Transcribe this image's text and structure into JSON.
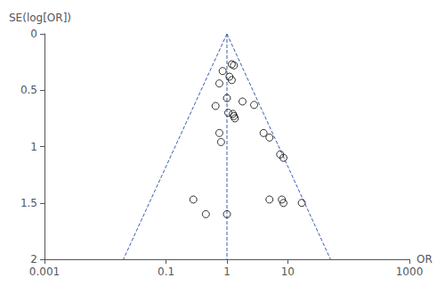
{
  "chart_data": {
    "type": "scatter",
    "xlabel": "OR",
    "ylabel": "SE(log[OR])",
    "log": "x",
    "xlim": [
      0.001,
      1000
    ],
    "xticks": [
      0.001,
      0.1,
      1,
      10,
      1000
    ],
    "ylim": [
      2,
      0
    ],
    "yticks": [
      0,
      0.5,
      1,
      1.5,
      2
    ],
    "grid": false,
    "series": [
      {
        "type": "line",
        "line_style": "dashed",
        "color": "#3a5faa",
        "x": [
          1,
          0.019841
        ],
        "values": [
          0,
          2
        ]
      },
      {
        "type": "line",
        "line_style": "dashed",
        "color": "#3a5faa",
        "x": [
          1,
          50.40045
        ],
        "values": [
          0,
          2
        ]
      },
      {
        "type": "line",
        "line_style": "dashed",
        "color": "#3a5faa",
        "x": [
          1,
          1
        ],
        "values": [
          0,
          2
        ]
      },
      {
        "type": "scatter",
        "marker": "open_circle",
        "color": "#000000",
        "x": [
          1.2,
          1.3,
          0.85,
          1.1,
          1.2,
          0.75,
          1.0,
          1.8,
          0.65,
          2.8,
          1.05,
          1.25,
          1.3,
          1.35,
          0.75,
          0.8,
          4.0,
          5.0,
          7.5,
          8.5,
          0.28,
          0.45,
          1.0,
          5.0,
          8.0,
          8.5,
          17.0
        ],
        "values": [
          0.27,
          0.28,
          0.33,
          0.38,
          0.41,
          0.44,
          0.57,
          0.6,
          0.64,
          0.63,
          0.7,
          0.71,
          0.73,
          0.75,
          0.88,
          0.96,
          0.88,
          0.92,
          1.07,
          1.1,
          1.47,
          1.6,
          1.6,
          1.47,
          1.47,
          1.5,
          1.5
        ]
      }
    ]
  }
}
